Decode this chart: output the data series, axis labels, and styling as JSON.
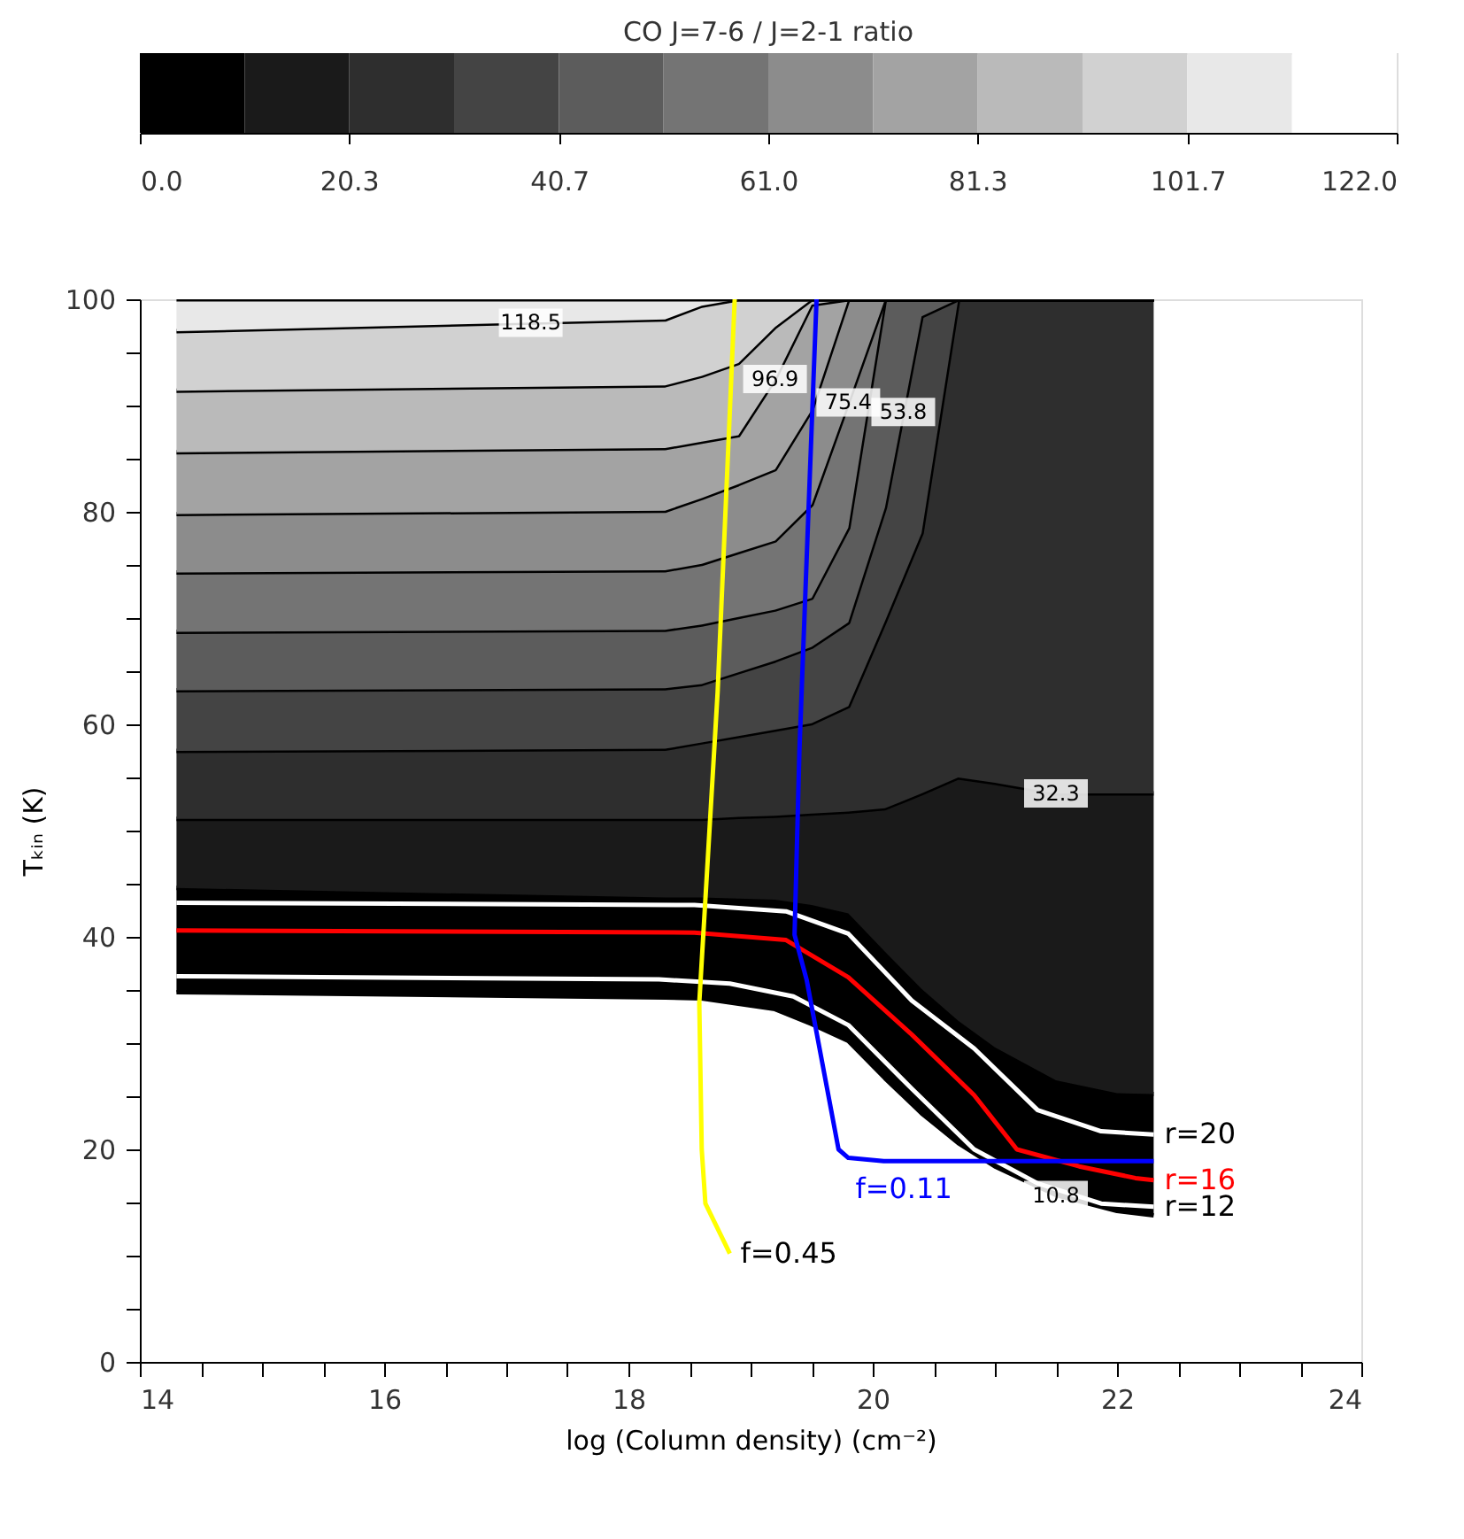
{
  "chart_data": {
    "type": "line",
    "xlabel": "log (Column density) (cm⁻²)",
    "ylabel": "Tₖᵢₙ (K)",
    "xlim": [
      14,
      24
    ],
    "ylim": [
      0,
      100
    ],
    "xticks": [
      14,
      {
        "value": 14.5,
        "label": null
      },
      {
        "value": 15,
        "label": null
      },
      {
        "value": 15.5,
        "label": null
      },
      16,
      {
        "value": 16.5,
        "label": null
      },
      {
        "value": 17,
        "label": null
      },
      {
        "value": 17.5,
        "label": null
      },
      18,
      {
        "value": 18.5,
        "label": null
      },
      {
        "value": 19,
        "label": null
      },
      {
        "value": 19.5,
        "label": null
      },
      20,
      {
        "value": 20.5,
        "label": null
      },
      {
        "value": 21,
        "label": null
      },
      {
        "value": 21.5,
        "label": null
      },
      22,
      {
        "value": 22.5,
        "label": null
      },
      {
        "value": 23,
        "label": null
      },
      {
        "value": 23.5,
        "label": null
      },
      24
    ],
    "yticks": [
      0,
      {
        "value": 5,
        "label": null
      },
      {
        "value": 10,
        "label": null
      },
      {
        "value": 15,
        "label": null
      },
      20,
      {
        "value": 25,
        "label": null
      },
      {
        "value": 30,
        "label": null
      },
      {
        "value": 35,
        "label": null
      },
      40,
      {
        "value": 45,
        "label": null
      },
      {
        "value": 50,
        "label": null
      },
      {
        "value": 55,
        "label": null
      },
      60,
      {
        "value": 65,
        "label": null
      },
      {
        "value": 70,
        "label": null
      },
      {
        "value": 75,
        "label": null
      },
      80,
      {
        "value": 85,
        "label": null
      },
      {
        "value": 90,
        "label": null
      },
      {
        "value": 95,
        "label": null
      },
      100
    ],
    "clabel": "CO J=7-6 / J=2-1 ratio",
    "clim": [
      0,
      122
    ],
    "cticks": [
      {
        "value": 0,
        "label": "0.0"
      },
      20.3,
      40.7,
      {
        "value": 61,
        "label": "61.0"
      },
      81.3,
      101.7,
      {
        "value": 122,
        "label": "122.0"
      }
    ],
    "colors": [
      "#000000",
      "#1a1a1a",
      "#2e2e2e",
      "#444444",
      "#5c5c5c",
      "#747474",
      "#8c8c8c",
      "#a3a3a3",
      "#bababa",
      "#d1d1d1",
      "#e8e8e8",
      "#ffffff"
    ],
    "stacked": true,
    "x": [
      14.3,
      18.3,
      18.6,
      18.9,
      19.2,
      19.5,
      19.8,
      20.1,
      20.4,
      20.7,
      21.0,
      21.5,
      22.0,
      22.3
    ],
    "series": [
      {
        "type": "area",
        "color": "#ffffff",
        "values": [
          34.8,
          34.3,
          34.2,
          33.7,
          33.2,
          31.8,
          30.2,
          26.7,
          23.4,
          20.6,
          18.4,
          15.7,
          14.2,
          13.8
        ]
      },
      {
        "type": "area",
        "color": "#000000",
        "values": [
          9.8,
          9.4,
          9.5,
          9.9,
          10.3,
          11.2,
          12.0,
          11.9,
          11.7,
          11.5,
          11.2,
          10.8,
          11.1,
          11.4
        ]
      },
      {
        "type": "area",
        "color": "#1a1a1a",
        "values": [
          6.5,
          7.4,
          7.4,
          7.7,
          7.9,
          8.6,
          9.6,
          13.5,
          18.4,
          22.9,
          24.9,
          27.0,
          28.2,
          28.3
        ]
      },
      {
        "type": "area",
        "color": "#2e2e2e",
        "values": [
          6.4,
          6.6,
          7.2,
          7.6,
          8.1,
          8.5,
          9.9,
          17.6,
          24.5,
          45.0,
          45.5,
          46.5,
          46.5,
          46.5
        ]
      },
      {
        "type": "area",
        "color": "#444444",
        "values": [
          5.7,
          5.7,
          5.5,
          6.0,
          6.5,
          7.2,
          7.9,
          10.7,
          20.4,
          0,
          0,
          0,
          0,
          0
        ]
      },
      {
        "type": "area",
        "color": "#5c5c5c",
        "values": [
          5.5,
          5.5,
          5.6,
          5.2,
          4.8,
          4.6,
          8.9,
          19.6,
          1.6,
          0,
          0,
          0,
          0,
          0
        ]
      },
      {
        "type": "area",
        "color": "#747474",
        "values": [
          5.6,
          5.6,
          5.7,
          6.1,
          6.5,
          8.8,
          11.8,
          0,
          0,
          0,
          0,
          0,
          0,
          0
        ]
      },
      {
        "type": "area",
        "color": "#8c8c8c",
        "values": [
          5.5,
          5.6,
          6.2,
          6.4,
          6.7,
          8.9,
          9.7,
          0,
          0,
          0,
          0,
          0,
          0,
          0
        ]
      },
      {
        "type": "area",
        "color": "#a3a3a3",
        "values": [
          5.8,
          5.9,
          5.3,
          4.6,
          8.5,
          9.9,
          0,
          0,
          0,
          0,
          0,
          0,
          0,
          0
        ]
      },
      {
        "type": "area",
        "color": "#bababa",
        "values": [
          5.8,
          5.9,
          6.2,
          6.8,
          4.9,
          0.5,
          0,
          0,
          0,
          0,
          0,
          0,
          0,
          0
        ]
      },
      {
        "type": "area",
        "color": "#d1d1d1",
        "values": [
          5.6,
          6.2,
          6.6,
          6.0,
          2.6,
          0,
          0,
          0,
          0,
          0,
          0,
          0,
          0,
          0
        ]
      },
      {
        "type": "area",
        "color": "#e8e8e8",
        "values": [
          3.0,
          1.9,
          0.6,
          0,
          0,
          0,
          0,
          0,
          0,
          0,
          0,
          0,
          0,
          0
        ]
      },
      {
        "type": "line",
        "name": "r=20",
        "color": "#ffffff",
        "x": [
          14.3,
          18.54,
          19.29,
          19.8,
          20.32,
          20.83,
          21.35,
          21.87,
          22.3
        ],
        "values": [
          43.2,
          43,
          42.4,
          40.3,
          34,
          29.5,
          23.7,
          21.7,
          21.4
        ]
      },
      {
        "type": "line",
        "name": "r=16",
        "color": "#ff0000",
        "x": [
          14.3,
          18.54,
          19.29,
          19.8,
          20.32,
          20.83,
          21.18,
          21.69,
          22.15,
          22.3
        ],
        "values": [
          40.6,
          40.4,
          39.7,
          36.2,
          30.8,
          25.1,
          20,
          18.4,
          17.3,
          17.1
        ]
      },
      {
        "type": "line",
        "name": "r=12",
        "color": "#ffffff",
        "x": [
          14.3,
          18.25,
          18.83,
          19.35,
          19.8,
          20.32,
          20.83,
          21.35,
          21.87,
          22.3
        ],
        "values": [
          36.3,
          36,
          35.6,
          34.4,
          31.7,
          25.7,
          20,
          16.8,
          14.9,
          14.6
        ]
      },
      {
        "type": "line",
        "name": "f=0.45",
        "color": "#ffff00",
        "x": [
          18.83,
          18.63,
          18.6,
          18.58,
          18.73,
          18.87
        ],
        "values": [
          10.2,
          14.9,
          20,
          33.8,
          63,
          100
        ]
      },
      {
        "type": "line",
        "name": "f=0.11",
        "color": "#0000ff",
        "x": [
          19.54,
          19.47,
          19.4,
          19.36,
          19.46,
          19.72,
          19.8,
          20.09,
          22.3
        ],
        "values": [
          100,
          78.9,
          57.6,
          40.2,
          35.9,
          20,
          19.2,
          18.9,
          18.9
        ]
      }
    ],
    "annotations": [
      {
        "text": "118.5",
        "x": 17.2,
        "y": 97.8
      },
      {
        "text": "96.9",
        "x": 19.2,
        "y": 92.5
      },
      {
        "text": "75.4",
        "x": 19.8,
        "y": 90.3
      },
      {
        "text": "53.8",
        "x": 20.25,
        "y": 89.4
      },
      {
        "text": "32.3",
        "x": 21.5,
        "y": 53.5
      },
      {
        "text": "10.8",
        "x": 21.5,
        "y": 15.7
      }
    ]
  }
}
